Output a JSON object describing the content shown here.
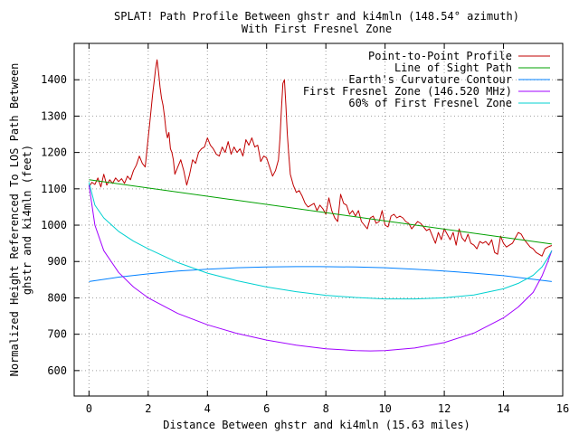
{
  "chart_data": {
    "type": "line",
    "title": "SPLAT! Path Profile Between ghstr and ki4mln (148.54° azimuth)",
    "subtitle": "With First Fresnel Zone",
    "xlabel": "Distance Between ghstr and ki4mln (15.63 miles)",
    "ylabel_line1": "Normalized Height Referenced To LOS Path Between",
    "ylabel_line2": "ghstr and ki4mln (feet)",
    "xlim": [
      -0.5,
      16
    ],
    "ylim": [
      530,
      1500
    ],
    "x_ticks": [
      0,
      2,
      4,
      6,
      8,
      10,
      12,
      14,
      16
    ],
    "y_ticks": [
      600,
      700,
      800,
      900,
      1000,
      1100,
      1200,
      1300,
      1400
    ],
    "grid": true,
    "legend_position": "top-right",
    "series": [
      {
        "name": "Point-to-Point Profile",
        "color": "#c00000",
        "x": [
          0,
          0.1,
          0.2,
          0.3,
          0.4,
          0.5,
          0.6,
          0.7,
          0.8,
          0.9,
          1.0,
          1.1,
          1.2,
          1.3,
          1.4,
          1.5,
          1.6,
          1.7,
          1.8,
          1.9,
          2.0,
          2.05,
          2.1,
          2.15,
          2.2,
          2.25,
          2.3,
          2.35,
          2.4,
          2.45,
          2.5,
          2.55,
          2.6,
          2.65,
          2.7,
          2.75,
          2.8,
          2.85,
          2.9,
          3.0,
          3.1,
          3.2,
          3.3,
          3.4,
          3.5,
          3.6,
          3.7,
          3.8,
          3.9,
          4.0,
          4.1,
          4.2,
          4.3,
          4.4,
          4.5,
          4.6,
          4.7,
          4.8,
          4.9,
          5.0,
          5.1,
          5.2,
          5.3,
          5.4,
          5.5,
          5.6,
          5.7,
          5.8,
          5.9,
          6.0,
          6.1,
          6.2,
          6.3,
          6.4,
          6.45,
          6.5,
          6.55,
          6.6,
          6.65,
          6.7,
          6.75,
          6.8,
          6.9,
          7.0,
          7.1,
          7.2,
          7.3,
          7.4,
          7.5,
          7.6,
          7.7,
          7.8,
          7.9,
          8.0,
          8.1,
          8.2,
          8.3,
          8.4,
          8.5,
          8.6,
          8.7,
          8.8,
          8.9,
          9.0,
          9.1,
          9.2,
          9.3,
          9.4,
          9.5,
          9.6,
          9.7,
          9.8,
          9.9,
          10.0,
          10.1,
          10.2,
          10.3,
          10.4,
          10.5,
          10.6,
          10.7,
          10.8,
          10.9,
          11.0,
          11.1,
          11.2,
          11.3,
          11.4,
          11.5,
          11.6,
          11.7,
          11.8,
          11.9,
          12.0,
          12.1,
          12.2,
          12.3,
          12.4,
          12.5,
          12.6,
          12.7,
          12.8,
          12.9,
          13.0,
          13.1,
          13.2,
          13.3,
          13.4,
          13.5,
          13.6,
          13.7,
          13.8,
          13.9,
          14.0,
          14.1,
          14.2,
          14.3,
          14.4,
          14.5,
          14.6,
          14.7,
          14.8,
          14.9,
          15.0,
          15.1,
          15.2,
          15.3,
          15.4,
          15.5,
          15.63
        ],
        "y": [
          1105,
          1118,
          1112,
          1130,
          1105,
          1140,
          1110,
          1125,
          1115,
          1130,
          1120,
          1128,
          1115,
          1135,
          1125,
          1150,
          1165,
          1190,
          1170,
          1160,
          1240,
          1280,
          1320,
          1360,
          1395,
          1430,
          1455,
          1420,
          1380,
          1350,
          1330,
          1300,
          1260,
          1240,
          1255,
          1210,
          1200,
          1180,
          1140,
          1160,
          1180,
          1150,
          1110,
          1140,
          1180,
          1170,
          1200,
          1210,
          1215,
          1240,
          1220,
          1210,
          1195,
          1190,
          1215,
          1200,
          1230,
          1195,
          1215,
          1200,
          1210,
          1190,
          1235,
          1220,
          1240,
          1215,
          1220,
          1175,
          1190,
          1185,
          1160,
          1135,
          1150,
          1180,
          1240,
          1320,
          1390,
          1400,
          1330,
          1250,
          1190,
          1140,
          1110,
          1090,
          1095,
          1080,
          1060,
          1050,
          1055,
          1060,
          1040,
          1055,
          1045,
          1030,
          1075,
          1040,
          1020,
          1010,
          1085,
          1060,
          1055,
          1030,
          1040,
          1025,
          1040,
          1010,
          1000,
          990,
          1020,
          1025,
          1005,
          1010,
          1040,
          1000,
          995,
          1025,
          1030,
          1020,
          1025,
          1020,
          1010,
          1005,
          990,
          1000,
          1010,
          1005,
          995,
          985,
          990,
          970,
          950,
          980,
          960,
          990,
          975,
          960,
          980,
          945,
          990,
          965,
          955,
          975,
          950,
          945,
          935,
          955,
          950,
          955,
          945,
          960,
          925,
          920,
          970,
          950,
          940,
          945,
          950,
          965,
          980,
          975,
          960,
          950,
          940,
          935,
          925,
          920,
          915,
          935,
          940,
          944
        ]
      },
      {
        "name": "Line of Sight Path",
        "color": "#00a000",
        "x": [
          0,
          15.63
        ],
        "y": [
          1125,
          948
        ]
      },
      {
        "name": "Earth's Curvature Contour",
        "color": "#0080ff",
        "x": [
          0,
          1,
          2,
          3,
          4,
          5,
          6,
          7,
          7.815,
          9,
          10,
          11,
          12,
          13,
          14,
          15,
          15.63
        ],
        "y": [
          845,
          857,
          866,
          874,
          879,
          883,
          885,
          886,
          886,
          885,
          883,
          879,
          874,
          868,
          861,
          851,
          845
        ]
      },
      {
        "name": "First Fresnel Zone (146.520 MHz)",
        "color": "#a000ff",
        "x": [
          0,
          0.2,
          0.5,
          1,
          1.5,
          2,
          3,
          4,
          5,
          6,
          7,
          8,
          9,
          9.5,
          10,
          11,
          12,
          13,
          14,
          14.5,
          15,
          15.3,
          15.5,
          15.63
        ],
        "y": [
          1110,
          1000,
          930,
          870,
          830,
          800,
          757,
          726,
          702,
          684,
          670,
          660,
          655,
          654,
          655,
          662,
          677,
          703,
          745,
          775,
          815,
          860,
          900,
          930
        ]
      },
      {
        "name": "60% of First Fresnel Zone",
        "color": "#00d0d0",
        "x": [
          0,
          0.2,
          0.5,
          1,
          1.5,
          2,
          3,
          4,
          5,
          6,
          7,
          8,
          9,
          10,
          10.5,
          11,
          12,
          13,
          14,
          14.5,
          15,
          15.3,
          15.5,
          15.63
        ],
        "y": [
          1118,
          1055,
          1020,
          983,
          956,
          935,
          897,
          868,
          847,
          830,
          817,
          807,
          801,
          797,
          797,
          797,
          800,
          808,
          825,
          840,
          862,
          885,
          910,
          930
        ]
      }
    ]
  }
}
